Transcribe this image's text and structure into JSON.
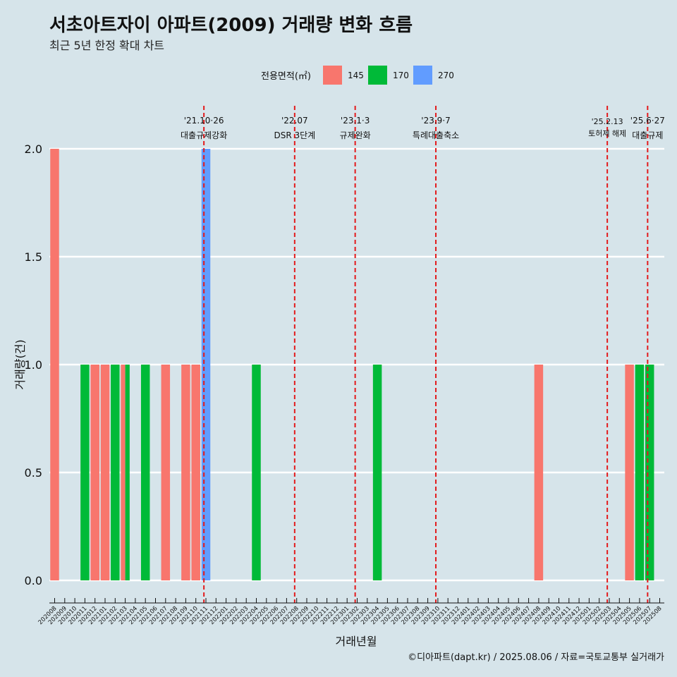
{
  "chart_data": {
    "type": "bar",
    "title": "서초아트자이 아파트(2009) 거래량 변화 흐름",
    "subtitle": "최근 5년 한정 확대 차트",
    "xlabel": "거래년월",
    "ylabel": "거래량(건)",
    "ylim": [
      0,
      2
    ],
    "yticks": [
      "0.0",
      "0.5",
      "1.0",
      "1.5",
      "2.0"
    ],
    "legend": {
      "title": "전용면적(㎡)",
      "position": "top",
      "entries": [
        {
          "name": "145",
          "color": "#F8766D"
        },
        {
          "name": "170",
          "color": "#00BA38"
        },
        {
          "name": "270",
          "color": "#619CFF"
        }
      ]
    },
    "categories": [
      "202008",
      "202009",
      "202010",
      "202011",
      "202012",
      "202101",
      "202102",
      "202103",
      "202104",
      "202105",
      "202106",
      "202107",
      "202108",
      "202109",
      "202110",
      "202111",
      "202112",
      "202201",
      "202202",
      "202203",
      "202204",
      "202205",
      "202206",
      "202207",
      "202208",
      "202209",
      "202210",
      "202211",
      "202212",
      "202301",
      "202302",
      "202303",
      "202304",
      "202305",
      "202306",
      "202307",
      "202308",
      "202309",
      "202310",
      "202311",
      "202312",
      "202401",
      "202402",
      "202403",
      "202404",
      "202405",
      "202406",
      "202407",
      "202408",
      "202409",
      "202410",
      "202411",
      "202412",
      "202501",
      "202502",
      "202503",
      "202504",
      "202505",
      "202506",
      "202507",
      "202508"
    ],
    "series": [
      {
        "name": "145",
        "points": [
          [
            "202008",
            2
          ],
          [
            "202012",
            1
          ],
          [
            "202101",
            1
          ],
          [
            "202103",
            1
          ],
          [
            "202107",
            1
          ],
          [
            "202109",
            1
          ],
          [
            "202110",
            1
          ],
          [
            "202408",
            1
          ],
          [
            "202505",
            1
          ]
        ]
      },
      {
        "name": "170",
        "points": [
          [
            "202011",
            1
          ],
          [
            "202102",
            1
          ],
          [
            "202103",
            1
          ],
          [
            "202105",
            1
          ],
          [
            "202204",
            1
          ],
          [
            "202304",
            1
          ],
          [
            "202506",
            1
          ],
          [
            "202507",
            1
          ]
        ]
      },
      {
        "name": "270",
        "points": [
          [
            "202111",
            2
          ]
        ]
      }
    ],
    "annotations": [
      {
        "date": "'21.10·26",
        "label": "대출규제강화",
        "size": "normal"
      },
      {
        "date": "'22.07",
        "label": "DSR 3단계",
        "size": "normal"
      },
      {
        "date": "'23.1·3",
        "label": "규제완화",
        "size": "normal"
      },
      {
        "date": "'23.9·7",
        "label": "특례대출축소",
        "size": "normal"
      },
      {
        "date": "'25.2.13",
        "label": "토허제 해제",
        "size": "small"
      },
      {
        "date": "'25.6·27",
        "label": "대출규제",
        "size": "normal"
      }
    ],
    "annotation_x_months": [
      14.8,
      23.8,
      29.8,
      37.8,
      54.8,
      58.8
    ],
    "caption": "©디아파트(dapt.kr) / 2025.08.06 / 자료=국토교통부 실거래가"
  }
}
